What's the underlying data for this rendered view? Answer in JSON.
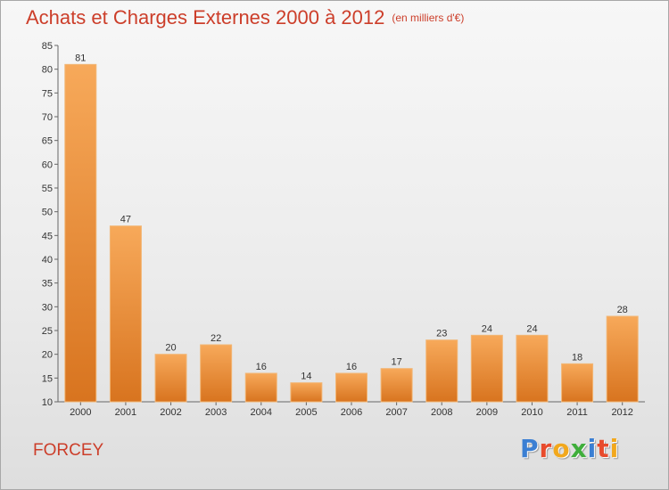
{
  "title": "Achats et Charges Externes 2000 à 2012",
  "unit": "(en milliers d'€)",
  "commune": "FORCEY",
  "logo": {
    "letters": [
      "P",
      "r",
      "o",
      "x",
      "i",
      "t",
      "i"
    ],
    "colors": [
      "#3b7fd3",
      "#e84b2c",
      "#f2a81d",
      "#3fae3b",
      "#3b7fd3",
      "#e84b2c",
      "#f2a81d"
    ]
  },
  "colors": {
    "title": "#cc3e2a",
    "bar_top": "#f7a95a",
    "bar_bottom": "#d8741f",
    "bar_edge": "#f2b675"
  },
  "chart_data": {
    "type": "bar",
    "title": "Achats et Charges Externes 2000 à 2012",
    "subtitle": "(en milliers d'€)",
    "categories": [
      "2000",
      "2001",
      "2002",
      "2003",
      "2004",
      "2005",
      "2006",
      "2007",
      "2008",
      "2009",
      "2010",
      "2011",
      "2012"
    ],
    "values": [
      81,
      47,
      20,
      22,
      16,
      14,
      16,
      17,
      23,
      24,
      24,
      18,
      28
    ],
    "ylim": [
      10,
      85
    ],
    "yticks": [
      10,
      15,
      20,
      25,
      30,
      35,
      40,
      45,
      50,
      55,
      60,
      65,
      70,
      75,
      80,
      85
    ],
    "grid": false,
    "data_labels": true
  }
}
